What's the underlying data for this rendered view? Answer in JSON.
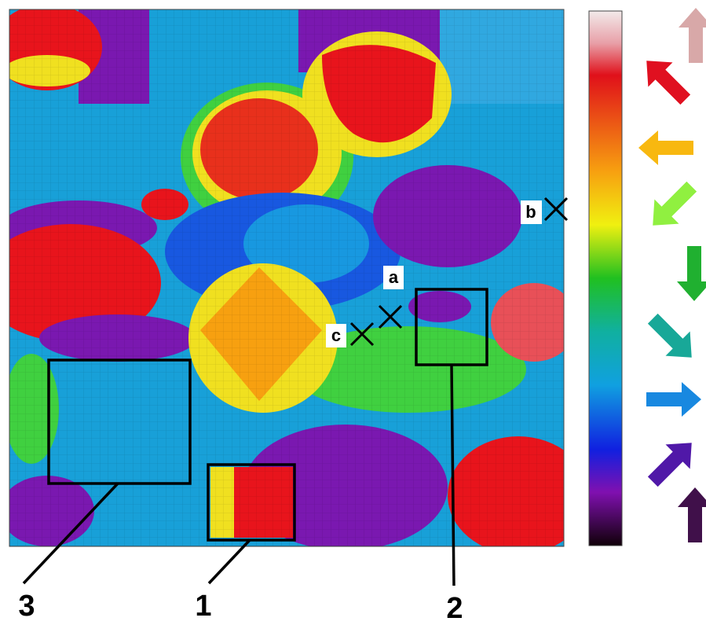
{
  "markers": [
    {
      "label": "a"
    },
    {
      "label": "b"
    },
    {
      "label": "c"
    }
  ],
  "regions": [
    {
      "label": "1"
    },
    {
      "label": "2"
    },
    {
      "label": "3"
    }
  ]
}
